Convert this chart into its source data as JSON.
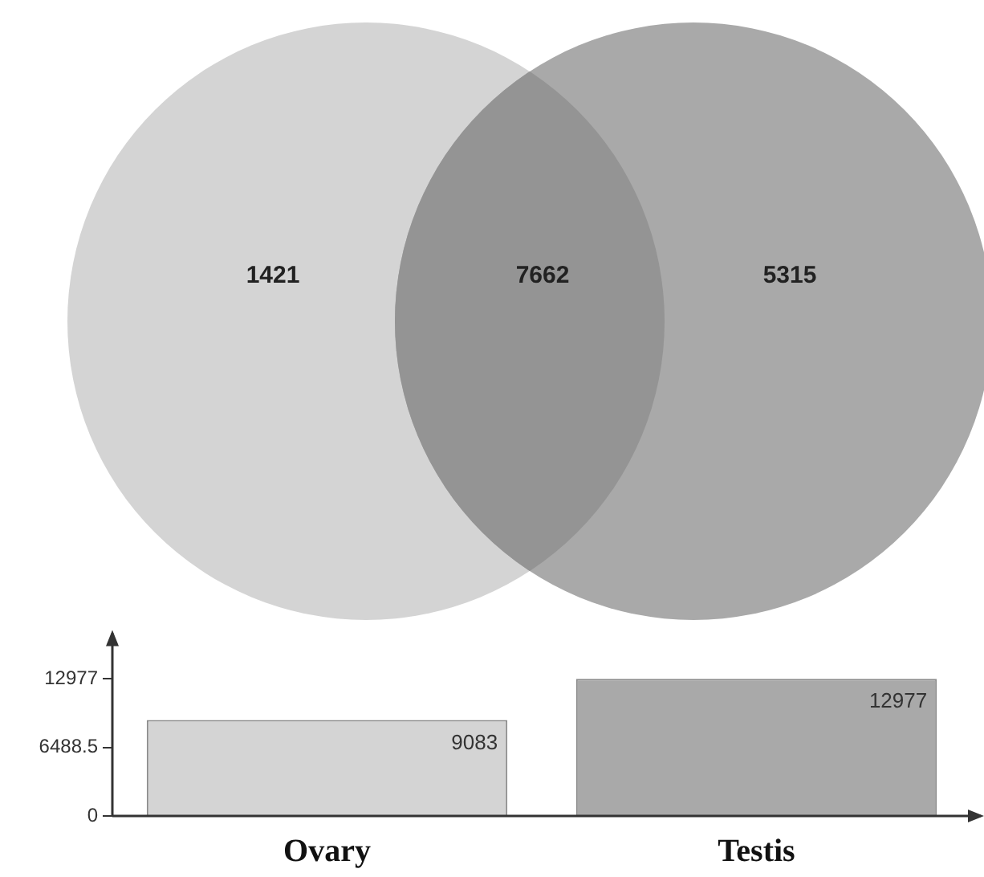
{
  "chart_data": [
    {
      "type": "other",
      "values": [
        1421,
        7662,
        5315
      ],
      "colors": [
        "#d4d4d4",
        "#949494",
        "#a9a9a9"
      ],
      "data_labels": true
    },
    {
      "type": "bar",
      "categories": [
        "Ovary",
        "Testis"
      ],
      "values": [
        9083,
        12977
      ],
      "colors": [
        "#d4d4d4",
        "#a9a9a9"
      ],
      "ylim": [
        0,
        17000
      ],
      "yticks": [
        0,
        6488.5,
        12977
      ],
      "data_labels": true,
      "grid": false,
      "legend": false
    }
  ]
}
